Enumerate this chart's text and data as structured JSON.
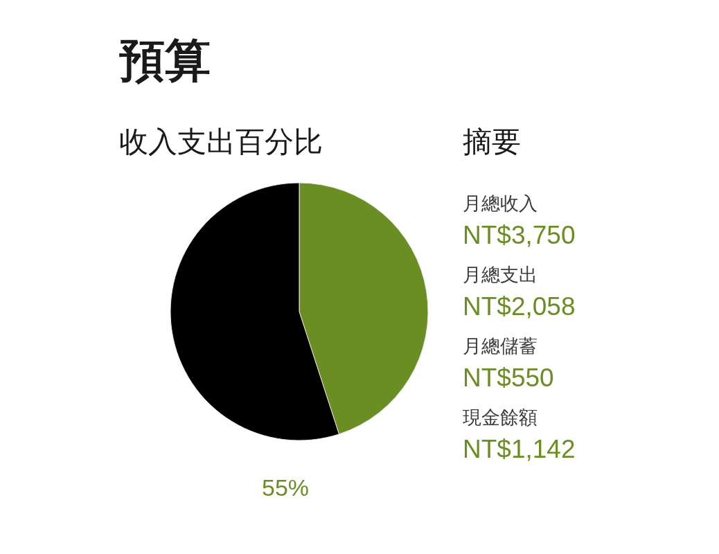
{
  "chart_data": [
    {
      "type": "pie",
      "title": "預算",
      "subtitle": "收入支出百分比",
      "categories": [
        null,
        null
      ],
      "values": [
        45,
        55
      ],
      "colors": [
        "#6b8e23",
        "#000000"
      ],
      "annotations": [
        "55%"
      ]
    },
    {
      "type": "other",
      "title": "摘要",
      "annotations": [
        "月總收入",
        "NT$3,750",
        "月總支出",
        "NT$2,058",
        "月總儲蓄",
        "NT$550",
        "現金餘額",
        "NT$1,142"
      ]
    }
  ]
}
